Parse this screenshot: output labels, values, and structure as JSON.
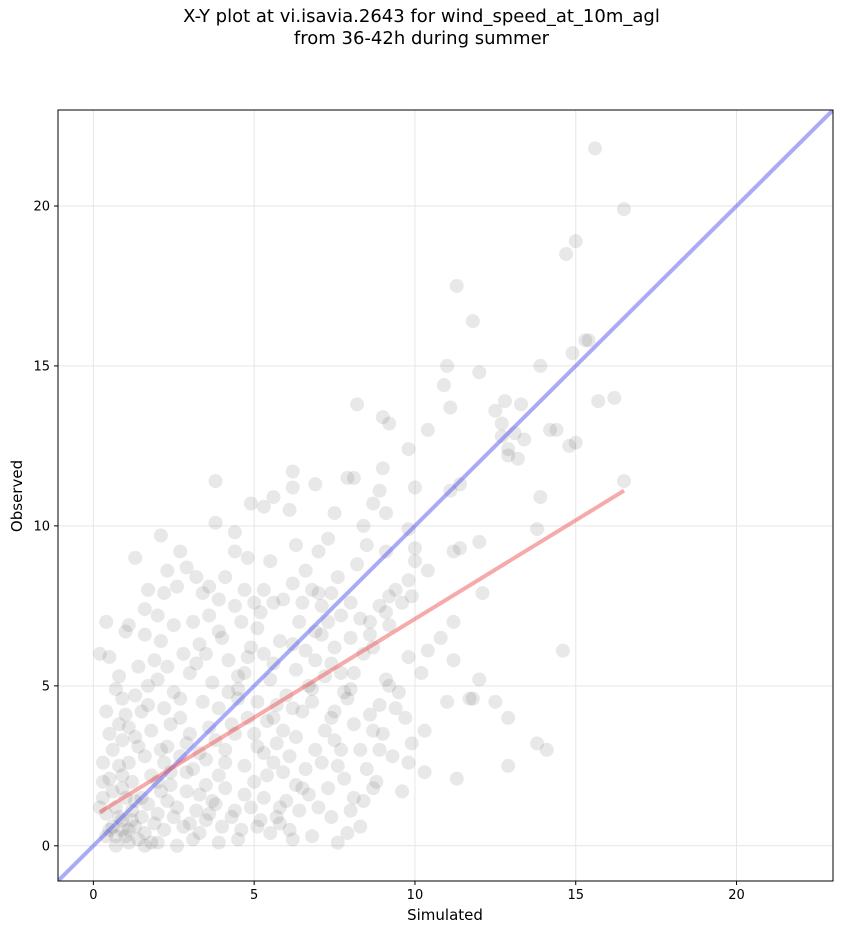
{
  "chart_data": {
    "type": "scatter",
    "title": "X-Y plot at vi.isavia.2643 for wind_speed_at_10m_agl",
    "subtitle": "from 36-42h during summer",
    "xlabel": "Simulated",
    "ylabel": "Observed",
    "xlim": [
      -1.1,
      23.0
    ],
    "ylim": [
      -1.1,
      23.0
    ],
    "xticks": [
      0,
      5,
      10,
      15,
      20
    ],
    "yticks": [
      0,
      5,
      10,
      15,
      20
    ],
    "grid": true,
    "colors": {
      "points": "#000000",
      "identity_line": "#5555ee",
      "fit_line": "#ee5555",
      "grid": "#e6e6e6"
    },
    "identity_line": {
      "x": [
        -1.1,
        23.0
      ],
      "y": [
        -1.1,
        23.0
      ]
    },
    "fit_line": {
      "x": [
        0.2,
        16.5
      ],
      "y": [
        1.05,
        11.1
      ]
    },
    "points": [
      [
        15.6,
        21.8
      ],
      [
        16.5,
        19.9
      ],
      [
        15.0,
        18.9
      ],
      [
        14.7,
        18.5
      ],
      [
        11.3,
        17.5
      ],
      [
        11.8,
        16.4
      ],
      [
        15.4,
        15.8
      ],
      [
        15.3,
        15.8
      ],
      [
        14.9,
        15.4
      ],
      [
        11.0,
        15.0
      ],
      [
        13.9,
        15.0
      ],
      [
        10.9,
        14.4
      ],
      [
        12.0,
        14.8
      ],
      [
        16.2,
        14.0
      ],
      [
        15.7,
        13.9
      ],
      [
        12.8,
        13.9
      ],
      [
        13.3,
        13.8
      ],
      [
        8.2,
        13.8
      ],
      [
        11.1,
        13.7
      ],
      [
        12.5,
        13.6
      ],
      [
        9.0,
        13.4
      ],
      [
        12.7,
        13.2
      ],
      [
        9.2,
        13.2
      ],
      [
        10.4,
        13.0
      ],
      [
        14.2,
        13.0
      ],
      [
        14.4,
        13.0
      ],
      [
        13.1,
        12.9
      ],
      [
        12.7,
        12.8
      ],
      [
        13.4,
        12.7
      ],
      [
        15.0,
        12.6
      ],
      [
        14.8,
        12.5
      ],
      [
        9.8,
        12.4
      ],
      [
        12.9,
        12.4
      ],
      [
        12.9,
        12.2
      ],
      [
        13.2,
        12.1
      ],
      [
        6.9,
        11.3
      ],
      [
        7.9,
        11.5
      ],
      [
        8.1,
        11.5
      ],
      [
        9.0,
        11.8
      ],
      [
        8.9,
        11.1
      ],
      [
        11.4,
        11.3
      ],
      [
        16.5,
        11.4
      ],
      [
        3.8,
        11.4
      ],
      [
        6.2,
        11.7
      ],
      [
        6.2,
        11.2
      ],
      [
        11.1,
        11.1
      ],
      [
        10.0,
        11.2
      ],
      [
        5.6,
        10.9
      ],
      [
        9.8,
        9.9
      ],
      [
        13.9,
        10.9
      ],
      [
        8.7,
        10.7
      ],
      [
        4.9,
        10.7
      ],
      [
        5.3,
        10.6
      ],
      [
        6.1,
        10.5
      ],
      [
        7.5,
        10.4
      ],
      [
        3.8,
        10.1
      ],
      [
        9.1,
        10.4
      ],
      [
        8.4,
        10.0
      ],
      [
        4.4,
        9.8
      ],
      [
        7.3,
        9.6
      ],
      [
        2.1,
        9.7
      ],
      [
        10.0,
        9.3
      ],
      [
        11.2,
        9.2
      ],
      [
        12.0,
        9.5
      ],
      [
        11.4,
        9.3
      ],
      [
        13.8,
        9.9
      ],
      [
        10.0,
        8.9
      ],
      [
        10.4,
        8.6
      ],
      [
        2.7,
        9.2
      ],
      [
        4.4,
        9.2
      ],
      [
        6.3,
        9.4
      ],
      [
        7.0,
        9.2
      ],
      [
        8.5,
        9.4
      ],
      [
        9.1,
        9.2
      ],
      [
        1.3,
        9.0
      ],
      [
        12.1,
        7.9
      ],
      [
        11.2,
        7.0
      ],
      [
        10.8,
        6.5
      ],
      [
        11.2,
        5.8
      ],
      [
        14.6,
        6.1
      ],
      [
        12.0,
        5.2
      ],
      [
        11.7,
        4.6
      ],
      [
        12.5,
        4.5
      ],
      [
        11.8,
        4.6
      ],
      [
        11.0,
        4.5
      ],
      [
        12.9,
        4.0
      ],
      [
        10.3,
        3.6
      ],
      [
        9.9,
        3.2
      ],
      [
        10.3,
        2.3
      ],
      [
        9.8,
        2.6
      ],
      [
        9.6,
        1.7
      ],
      [
        11.3,
        2.1
      ],
      [
        12.9,
        2.5
      ],
      [
        14.1,
        3.0
      ],
      [
        13.8,
        3.2
      ],
      [
        10.2,
        5.4
      ],
      [
        9.8,
        5.9
      ],
      [
        10.4,
        6.1
      ],
      [
        9.4,
        8.0
      ],
      [
        9.6,
        7.6
      ],
      [
        9.9,
        7.8
      ],
      [
        9.1,
        7.3
      ],
      [
        8.7,
        6.2
      ],
      [
        9.2,
        5.0
      ],
      [
        9.4,
        4.3
      ],
      [
        8.9,
        3.0
      ],
      [
        8.7,
        1.8
      ],
      [
        8.0,
        1.1
      ],
      [
        8.3,
        0.6
      ],
      [
        7.9,
        0.4
      ],
      [
        7.4,
        0.9
      ],
      [
        6.8,
        0.3
      ],
      [
        6.2,
        0.2
      ],
      [
        7.6,
        0.1
      ],
      [
        5.8,
        1.2
      ],
      [
        5.1,
        0.6
      ],
      [
        4.5,
        0.2
      ],
      [
        3.9,
        0.1
      ],
      [
        3.1,
        0.2
      ],
      [
        2.6,
        0.0
      ],
      [
        2.0,
        0.1
      ],
      [
        1.6,
        0.0
      ],
      [
        1.1,
        0.1
      ],
      [
        0.7,
        0.0
      ],
      [
        0.5,
        0.5
      ],
      [
        0.4,
        1.0
      ],
      [
        0.3,
        1.5
      ],
      [
        0.5,
        2.1
      ],
      [
        0.3,
        2.6
      ],
      [
        0.6,
        3.0
      ],
      [
        0.8,
        3.8
      ],
      [
        0.9,
        4.6
      ],
      [
        0.8,
        5.3
      ],
      [
        0.5,
        5.9
      ],
      [
        0.2,
        6.0
      ],
      [
        0.4,
        7.0
      ],
      [
        1.0,
        6.7
      ],
      [
        1.1,
        6.9
      ],
      [
        1.6,
        6.6
      ],
      [
        1.6,
        7.4
      ],
      [
        1.7,
        8.0
      ],
      [
        2.0,
        7.2
      ],
      [
        2.2,
        7.9
      ],
      [
        2.3,
        8.6
      ],
      [
        2.6,
        8.1
      ],
      [
        2.9,
        8.7
      ],
      [
        3.2,
        8.4
      ],
      [
        3.4,
        7.9
      ],
      [
        3.6,
        8.1
      ],
      [
        3.9,
        7.7
      ],
      [
        4.1,
        8.4
      ],
      [
        4.4,
        7.5
      ],
      [
        4.7,
        8.0
      ],
      [
        5.0,
        7.6
      ],
      [
        5.3,
        8.0
      ],
      [
        5.6,
        7.6
      ],
      [
        5.9,
        7.7
      ],
      [
        6.2,
        8.2
      ],
      [
        6.5,
        7.6
      ],
      [
        6.8,
        8.0
      ],
      [
        7.1,
        7.5
      ],
      [
        7.4,
        7.9
      ],
      [
        7.7,
        7.2
      ],
      [
        8.0,
        7.6
      ],
      [
        8.3,
        7.1
      ],
      [
        8.6,
        6.6
      ],
      [
        8.9,
        7.5
      ],
      [
        9.2,
        6.9
      ],
      [
        8.4,
        6.0
      ],
      [
        8.1,
        5.4
      ],
      [
        7.8,
        4.8
      ],
      [
        7.5,
        4.2
      ],
      [
        7.2,
        3.6
      ],
      [
        6.9,
        3.0
      ],
      [
        6.6,
        2.4
      ],
      [
        6.3,
        1.9
      ],
      [
        6.0,
        1.4
      ],
      [
        5.7,
        0.9
      ],
      [
        5.4,
        2.2
      ],
      [
        5.1,
        3.1
      ],
      [
        4.8,
        4.0
      ],
      [
        4.5,
        4.9
      ],
      [
        4.2,
        5.8
      ],
      [
        3.9,
        6.7
      ],
      [
        3.6,
        7.2
      ],
      [
        3.3,
        6.3
      ],
      [
        3.0,
        5.4
      ],
      [
        2.7,
        4.6
      ],
      [
        2.4,
        3.8
      ],
      [
        2.1,
        3.0
      ],
      [
        1.8,
        2.2
      ],
      [
        1.5,
        1.5
      ],
      [
        1.2,
        0.8
      ],
      [
        0.9,
        0.5
      ],
      [
        0.7,
        1.2
      ],
      [
        0.9,
        1.8
      ],
      [
        1.1,
        2.6
      ],
      [
        1.3,
        3.4
      ],
      [
        1.5,
        4.2
      ],
      [
        1.7,
        5.0
      ],
      [
        1.9,
        5.8
      ],
      [
        2.1,
        6.4
      ],
      [
        2.3,
        5.6
      ],
      [
        2.5,
        4.8
      ],
      [
        2.7,
        4.0
      ],
      [
        2.9,
        3.2
      ],
      [
        3.1,
        2.4
      ],
      [
        3.3,
        1.6
      ],
      [
        3.5,
        0.8
      ],
      [
        3.7,
        1.4
      ],
      [
        3.9,
        2.2
      ],
      [
        4.1,
        3.0
      ],
      [
        4.3,
        3.8
      ],
      [
        4.5,
        4.6
      ],
      [
        4.7,
        5.4
      ],
      [
        4.9,
        6.2
      ],
      [
        5.1,
        6.8
      ],
      [
        5.3,
        6.0
      ],
      [
        5.5,
        5.2
      ],
      [
        5.7,
        4.4
      ],
      [
        5.9,
        3.6
      ],
      [
        6.1,
        2.8
      ],
      [
        6.3,
        3.4
      ],
      [
        6.5,
        4.2
      ],
      [
        6.7,
        5.0
      ],
      [
        6.9,
        5.8
      ],
      [
        7.1,
        6.6
      ],
      [
        7.3,
        7.0
      ],
      [
        7.5,
        6.2
      ],
      [
        7.7,
        5.4
      ],
      [
        7.9,
        4.6
      ],
      [
        8.1,
        3.8
      ],
      [
        8.3,
        3.0
      ],
      [
        8.5,
        2.4
      ],
      [
        8.7,
        3.6
      ],
      [
        8.9,
        4.4
      ],
      [
        9.1,
        5.2
      ],
      [
        1.0,
        0.3
      ],
      [
        1.3,
        0.6
      ],
      [
        1.6,
        0.4
      ],
      [
        1.9,
        0.7
      ],
      [
        2.2,
        0.5
      ],
      [
        2.5,
        0.9
      ],
      [
        2.8,
        0.6
      ],
      [
        0.8,
        0.9
      ],
      [
        1.2,
        1.1
      ],
      [
        1.4,
        0.2
      ],
      [
        1.7,
        1.3
      ],
      [
        2.0,
        1.0
      ],
      [
        2.3,
        1.4
      ],
      [
        2.6,
        1.2
      ],
      [
        2.9,
        1.7
      ],
      [
        3.2,
        1.1
      ],
      [
        3.5,
        1.9
      ],
      [
        3.8,
        1.3
      ],
      [
        4.1,
        1.8
      ],
      [
        4.4,
        1.1
      ],
      [
        4.7,
        1.6
      ],
      [
        5.0,
        2.0
      ],
      [
        5.3,
        1.5
      ],
      [
        5.6,
        2.6
      ],
      [
        0.6,
        0.6
      ],
      [
        0.7,
        0.3
      ],
      [
        0.9,
        0.8
      ],
      [
        1.1,
        0.5
      ],
      [
        1.3,
        1.4
      ],
      [
        1.5,
        0.9
      ],
      [
        1.8,
        0.1
      ],
      [
        2.1,
        1.7
      ],
      [
        2.4,
        2.3
      ],
      [
        2.7,
        2.8
      ],
      [
        3.0,
        3.5
      ],
      [
        3.3,
        2.9
      ],
      [
        3.6,
        3.7
      ],
      [
        3.9,
        4.3
      ],
      [
        4.2,
        4.8
      ],
      [
        4.5,
        5.3
      ],
      [
        4.8,
        5.9
      ],
      [
        5.1,
        4.5
      ],
      [
        5.4,
        3.9
      ],
      [
        5.7,
        3.2
      ],
      [
        6.0,
        4.7
      ],
      [
        6.3,
        5.5
      ],
      [
        6.6,
        6.1
      ],
      [
        6.9,
        6.7
      ],
      [
        7.2,
        5.3
      ],
      [
        7.5,
        3.3
      ],
      [
        7.8,
        2.1
      ],
      [
        8.1,
        1.5
      ],
      [
        2.0,
        2.0
      ],
      [
        2.2,
        2.6
      ],
      [
        2.4,
        1.9
      ],
      [
        1.6,
        2.8
      ],
      [
        1.4,
        3.1
      ],
      [
        1.2,
        2.0
      ],
      [
        1.0,
        1.5
      ],
      [
        0.8,
        2.5
      ],
      [
        0.6,
        1.7
      ],
      [
        3.0,
        0.7
      ],
      [
        3.3,
        0.4
      ],
      [
        3.6,
        1.0
      ],
      [
        4.0,
        0.6
      ],
      [
        4.3,
        0.9
      ],
      [
        4.6,
        0.5
      ],
      [
        4.9,
        1.2
      ],
      [
        5.2,
        0.8
      ],
      [
        5.5,
        0.4
      ],
      [
        5.8,
        0.7
      ],
      [
        6.1,
        0.5
      ],
      [
        6.4,
        1.1
      ],
      [
        6.7,
        1.6
      ],
      [
        7.0,
        1.2
      ],
      [
        7.3,
        1.8
      ],
      [
        7.6,
        2.5
      ],
      [
        3.4,
        4.5
      ],
      [
        3.7,
        5.1
      ],
      [
        2.8,
        6.0
      ],
      [
        2.5,
        6.9
      ],
      [
        3.1,
        7.0
      ],
      [
        1.4,
        5.6
      ],
      [
        1.0,
        4.1
      ],
      [
        0.7,
        4.9
      ],
      [
        1.8,
        3.6
      ],
      [
        2.2,
        4.3
      ],
      [
        4.0,
        6.5
      ],
      [
        4.6,
        7.0
      ],
      [
        5.2,
        7.3
      ],
      [
        5.8,
        6.4
      ],
      [
        6.4,
        7.0
      ],
      [
        7.0,
        7.9
      ],
      [
        7.6,
        8.4
      ],
      [
        8.2,
        8.8
      ],
      [
        6.6,
        8.6
      ],
      [
        5.5,
        8.9
      ],
      [
        4.8,
        9.0
      ],
      [
        3.5,
        6.0
      ],
      [
        3.2,
        5.7
      ],
      [
        2.0,
        5.2
      ],
      [
        1.3,
        4.7
      ],
      [
        0.9,
        3.3
      ],
      [
        0.5,
        3.5
      ],
      [
        0.4,
        4.2
      ],
      [
        0.3,
        2.0
      ],
      [
        0.2,
        1.2
      ],
      [
        0.4,
        0.3
      ],
      [
        5.6,
        5.7
      ],
      [
        6.2,
        6.3
      ],
      [
        6.8,
        4.5
      ],
      [
        7.4,
        4.0
      ],
      [
        8.0,
        4.9
      ],
      [
        8.6,
        4.1
      ],
      [
        9.0,
        3.5
      ],
      [
        9.5,
        4.8
      ],
      [
        9.7,
        4.0
      ],
      [
        9.3,
        2.8
      ],
      [
        8.8,
        2.0
      ],
      [
        8.4,
        1.4
      ],
      [
        7.7,
        3.0
      ],
      [
        7.1,
        2.6
      ],
      [
        6.5,
        1.8
      ],
      [
        5.9,
        2.3
      ],
      [
        5.3,
        2.9
      ],
      [
        4.7,
        2.5
      ],
      [
        4.1,
        2.6
      ],
      [
        3.5,
        2.7
      ],
      [
        2.9,
        2.3
      ],
      [
        2.3,
        3.1
      ],
      [
        1.7,
        4.4
      ],
      [
        1.1,
        3.7
      ],
      [
        0.9,
        2.2
      ],
      [
        3.8,
        3.3
      ],
      [
        4.4,
        3.5
      ],
      [
        5.0,
        3.5
      ],
      [
        5.6,
        4.0
      ],
      [
        6.2,
        4.3
      ],
      [
        6.8,
        4.9
      ],
      [
        7.4,
        5.7
      ],
      [
        8.0,
        6.5
      ],
      [
        8.6,
        7.0
      ],
      [
        9.2,
        7.8
      ],
      [
        9.8,
        8.3
      ]
    ]
  }
}
